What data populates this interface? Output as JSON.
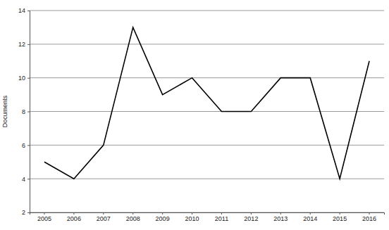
{
  "chart_data": {
    "type": "line",
    "y_label": "Documents",
    "categories": [
      "2005",
      "2006",
      "2007",
      "2008",
      "2009",
      "2010",
      "2011",
      "2012",
      "2013",
      "2014",
      "2015",
      "2016"
    ],
    "values": [
      5,
      4,
      6,
      13,
      9,
      10,
      8,
      8,
      10,
      10,
      4,
      11
    ],
    "color": "#000000",
    "ylim": [
      2,
      14
    ],
    "yticks": [
      2,
      4,
      6,
      8,
      10,
      12,
      14
    ],
    "grid": true
  }
}
